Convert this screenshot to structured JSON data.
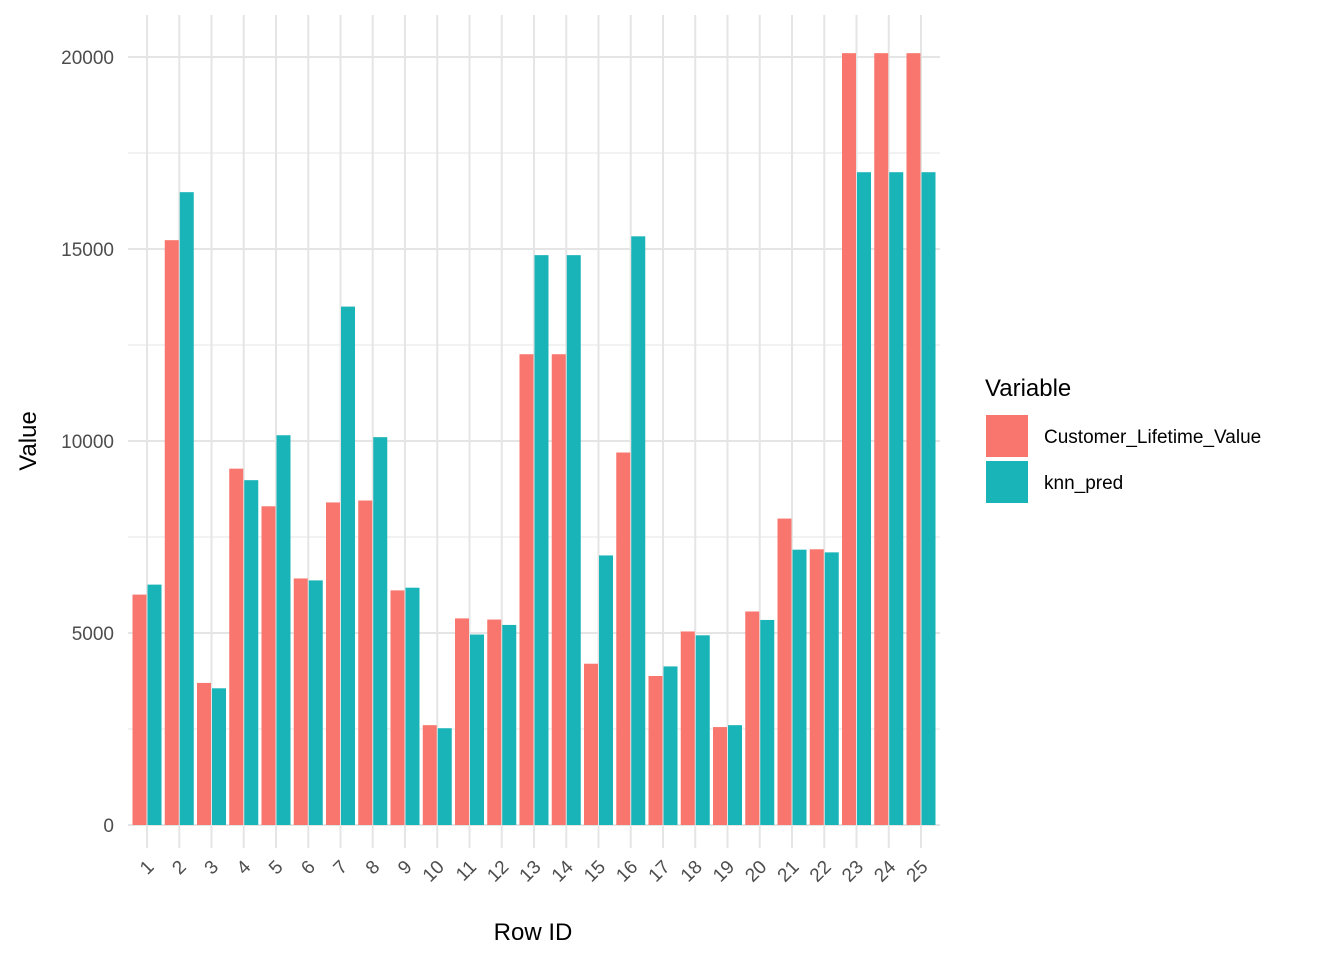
{
  "chart_data": {
    "type": "bar",
    "xlabel": "Row ID",
    "ylabel": "Value",
    "ylim": [
      0,
      20000
    ],
    "y_ticks": [
      0,
      5000,
      10000,
      15000,
      20000
    ],
    "grid": true,
    "legend_title": "Variable",
    "legend_position": "right",
    "categories": [
      "1",
      "2",
      "3",
      "4",
      "5",
      "6",
      "7",
      "8",
      "9",
      "10",
      "11",
      "12",
      "13",
      "14",
      "15",
      "16",
      "17",
      "18",
      "19",
      "20",
      "21",
      "22",
      "23",
      "24",
      "25"
    ],
    "series": [
      {
        "name": "Customer_Lifetime_Value",
        "color": "#F8766D",
        "values": [
          6000,
          15230,
          3700,
          9280,
          8300,
          6420,
          8400,
          8450,
          6110,
          2600,
          5380,
          5350,
          12260,
          12260,
          4200,
          9700,
          3880,
          5040,
          2550,
          5560,
          7980,
          7180,
          20100,
          20100,
          20100
        ]
      },
      {
        "name": "knn_pred",
        "color": "#19B4B8",
        "values": [
          6260,
          16480,
          3560,
          8980,
          10150,
          6370,
          13500,
          10100,
          6180,
          2520,
          4960,
          5210,
          14840,
          14840,
          7020,
          15330,
          4130,
          4940,
          2600,
          5340,
          7170,
          7100,
          17000,
          17000,
          17000
        ]
      }
    ]
  }
}
